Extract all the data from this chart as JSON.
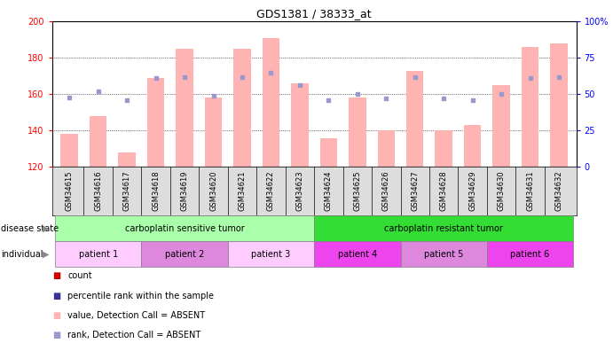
{
  "title": "GDS1381 / 38333_at",
  "samples": [
    "GSM34615",
    "GSM34616",
    "GSM34617",
    "GSM34618",
    "GSM34619",
    "GSM34620",
    "GSM34621",
    "GSM34622",
    "GSM34623",
    "GSM34624",
    "GSM34625",
    "GSM34626",
    "GSM34627",
    "GSM34628",
    "GSM34629",
    "GSM34630",
    "GSM34631",
    "GSM34632"
  ],
  "bar_values": [
    138,
    148,
    128,
    169,
    185,
    158,
    185,
    191,
    166,
    136,
    158,
    140,
    173,
    140,
    143,
    165,
    186,
    188
  ],
  "rank_values": [
    48,
    52,
    46,
    61,
    62,
    49,
    62,
    65,
    56,
    46,
    50,
    47,
    62,
    47,
    46,
    50,
    61,
    62
  ],
  "ymin": 120,
  "ymax": 200,
  "yticks": [
    120,
    140,
    160,
    180,
    200
  ],
  "y2ticks": [
    0,
    25,
    50,
    75,
    100
  ],
  "y2min": 0,
  "y2max": 100,
  "bar_color": "#FFB3B3",
  "rank_color": "#9999CC",
  "disease_state_groups": [
    {
      "label": "carboplatin sensitive tumor",
      "start": 0,
      "end": 9,
      "color": "#AAFFAA"
    },
    {
      "label": "carboplatin resistant tumor",
      "start": 9,
      "end": 18,
      "color": "#33DD33"
    }
  ],
  "individual_groups": [
    {
      "label": "patient 1",
      "start": 0,
      "end": 3,
      "color": "#FFCCFF"
    },
    {
      "label": "patient 2",
      "start": 3,
      "end": 6,
      "color": "#DD88DD"
    },
    {
      "label": "patient 3",
      "start": 6,
      "end": 9,
      "color": "#FFCCFF"
    },
    {
      "label": "patient 4",
      "start": 9,
      "end": 12,
      "color": "#EE44EE"
    },
    {
      "label": "patient 5",
      "start": 12,
      "end": 15,
      "color": "#DD88DD"
    },
    {
      "label": "patient 6",
      "start": 15,
      "end": 18,
      "color": "#EE44EE"
    }
  ],
  "legend_items": [
    {
      "label": "count",
      "color": "#CC0000"
    },
    {
      "label": "percentile rank within the sample",
      "color": "#333399"
    },
    {
      "label": "value, Detection Call = ABSENT",
      "color": "#FFB3B3"
    },
    {
      "label": "rank, Detection Call = ABSENT",
      "color": "#9999CC"
    }
  ],
  "xlabel_gray": "#CCCCCC",
  "xlabel_box_color": "#DDDDDD"
}
